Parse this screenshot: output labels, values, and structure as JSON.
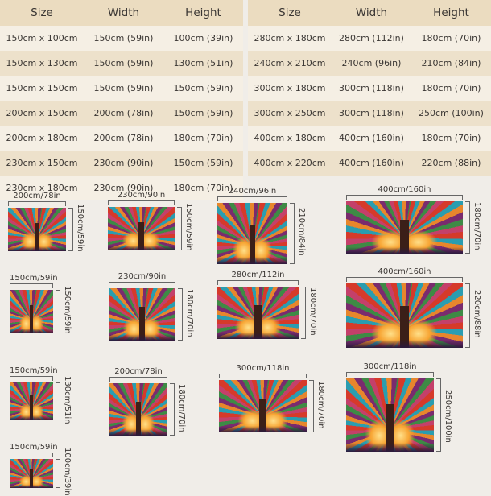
{
  "tables": [
    {
      "headers": [
        "Size",
        "Width",
        "Height"
      ],
      "rows": [
        [
          "150cm x 100cm",
          "150cm (59in)",
          "100cm (39in)"
        ],
        [
          "150cm x 130cm",
          "150cm (59in)",
          "130cm (51in)"
        ],
        [
          "150cm x 150cm",
          "150cm (59in)",
          "150cm (59in)"
        ],
        [
          "200cm x 150cm",
          "200cm (78in)",
          "150cm (59in)"
        ],
        [
          "200cm x 180cm",
          "200cm (78in)",
          "180cm (70in)"
        ],
        [
          "230cm x 150cm",
          "230cm (90in)",
          "150cm (59in)"
        ],
        [
          "230cm x 180cm",
          "230cm (90in)",
          "180cm (70in)"
        ]
      ]
    },
    {
      "headers": [
        "Size",
        "Width",
        "Height"
      ],
      "rows": [
        [
          "280cm x 180cm",
          "280cm (112in)",
          "180cm (70in)"
        ],
        [
          "240cm x 210cm",
          "240cm (96in)",
          "210cm (84in)"
        ],
        [
          "300cm x 180cm",
          "300cm (118in)",
          "180cm (70in)"
        ],
        [
          "300cm x 250cm",
          "300cm (118in)",
          "250cm (100in)"
        ],
        [
          "400cm x 180cm",
          "400cm (160in)",
          "180cm (70in)"
        ],
        [
          "400cm x 220cm",
          "400cm (160in)",
          "220cm (88in)"
        ]
      ]
    }
  ],
  "previews": [
    {
      "width_label": "200cm/78in",
      "height_label": "150cm/59in",
      "w_cm": 200,
      "h_cm": 150
    },
    {
      "width_label": "230cm/90in",
      "height_label": "150cm/59in",
      "w_cm": 230,
      "h_cm": 150
    },
    {
      "width_label": "240cm/96in",
      "height_label": "210cm/84in",
      "w_cm": 240,
      "h_cm": 210
    },
    {
      "width_label": "400cm/160in",
      "height_label": "180cm/70in",
      "w_cm": 400,
      "h_cm": 180
    },
    {
      "width_label": "150cm/59in",
      "height_label": "150cm/59in",
      "w_cm": 150,
      "h_cm": 150
    },
    {
      "width_label": "230cm/90in",
      "height_label": "180cm/70in",
      "w_cm": 230,
      "h_cm": 180
    },
    {
      "width_label": "280cm/112in",
      "height_label": "180cm/70in",
      "w_cm": 280,
      "h_cm": 180
    },
    {
      "width_label": "400cm/160in",
      "height_label": "220cm/88in",
      "w_cm": 400,
      "h_cm": 220
    },
    {
      "width_label": "150cm/59in",
      "height_label": "130cm/51in",
      "w_cm": 150,
      "h_cm": 130
    },
    {
      "width_label": "200cm/78in",
      "height_label": "180cm/70in",
      "w_cm": 200,
      "h_cm": 180
    },
    {
      "width_label": "300cm/118in",
      "height_label": "180cm/70in",
      "w_cm": 300,
      "h_cm": 180
    },
    {
      "width_label": "300cm/118in",
      "height_label": "250cm/100in",
      "w_cm": 300,
      "h_cm": 250
    },
    {
      "width_label": "150cm/59in",
      "height_label": "100cm/39in",
      "w_cm": 150,
      "h_cm": 100
    }
  ]
}
